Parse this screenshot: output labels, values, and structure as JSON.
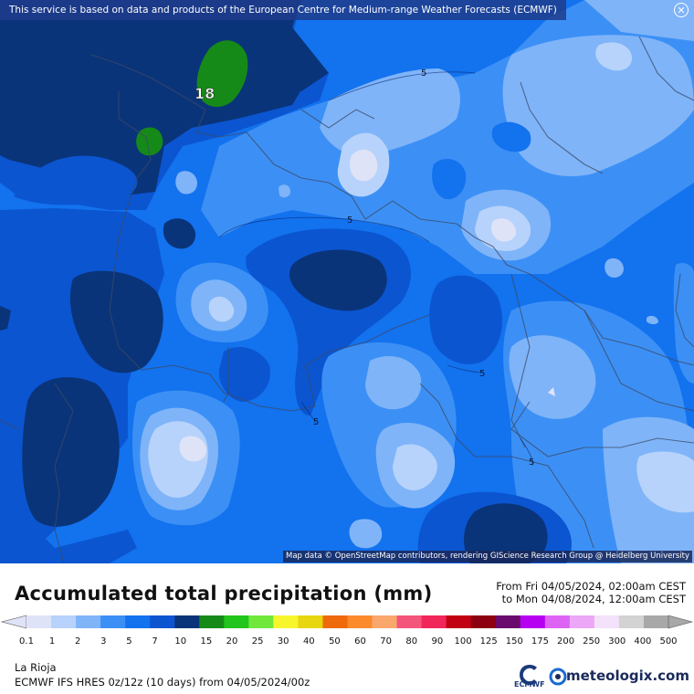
{
  "header": {
    "notice": "This service is based on data and products of the European Centre for Medium-range Weather Forecasts (ECMWF)",
    "close_icon": "close-icon"
  },
  "map": {
    "attribution": "Map data © OpenStreetMap contributors, rendering GIScience Research Group @ Heidelberg University",
    "contour_labels": [
      "5",
      "5",
      "5",
      "5",
      "5"
    ],
    "max_label": "18",
    "colors": {
      "lt1": "#dfe3f7",
      "1to2": "#b7d3fb",
      "2to3": "#7fb4f9",
      "3to5": "#3c90f5",
      "5to7": "#1372ee",
      "7to10": "#0b55d1",
      "10to15": "#0a3479",
      "15to20": "#168a19"
    }
  },
  "legend": {
    "title": "Accumulated total precipitation (mm)",
    "from": "From Fri 04/05/2024, 02:00am CEST",
    "to": "to Mon 04/08/2024, 12:00am CEST",
    "ticks": [
      "0.1",
      "1",
      "2",
      "3",
      "5",
      "7",
      "10",
      "15",
      "20",
      "25",
      "30",
      "40",
      "50",
      "60",
      "70",
      "80",
      "90",
      "100",
      "125",
      "150",
      "175",
      "200",
      "250",
      "300",
      "400",
      "500"
    ],
    "colors": [
      "#dfe3f7",
      "#b7d3fb",
      "#7fb4f9",
      "#3c90f5",
      "#1372ee",
      "#0b55d1",
      "#0a3479",
      "#168a19",
      "#22c51c",
      "#70e83b",
      "#f7f52c",
      "#e8d611",
      "#ee6a0a",
      "#fb8a2c",
      "#f9a76c",
      "#f4557a",
      "#f1265a",
      "#c10011",
      "#8c0012",
      "#6a0a6f",
      "#b600f2",
      "#dd63f3",
      "#eca7f6",
      "#f3e2fa",
      "#d3d3d3",
      "#a8a8a8"
    ]
  },
  "footer": {
    "place": "La Rioja",
    "model": "ECMWF IFS HRES 0z/12z (10 days) from  04/05/2024/00z",
    "ecmwf_logo": "ECMWF",
    "brand": "meteologix.com"
  }
}
